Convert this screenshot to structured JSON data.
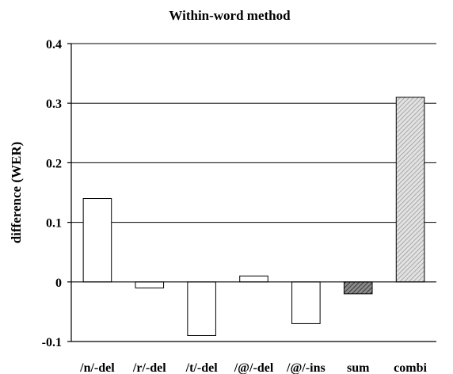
{
  "chart_data": {
    "type": "bar",
    "title": "Within-word method",
    "xlabel": "",
    "ylabel": "difference (WER)",
    "ylim": [
      -0.1,
      0.4
    ],
    "yticks": [
      0.4,
      0.3,
      0.2,
      0.1,
      0,
      -0.1
    ],
    "ytick_labels": [
      "0.4",
      "0.3",
      "0.2",
      "0.1",
      "0",
      "-0.1"
    ],
    "grid": "horizontal",
    "categories": [
      "/n/-del",
      "/r/-del",
      "/t/-del",
      "/@/-del",
      "/@/-ins",
      "sum",
      "combi"
    ],
    "values": [
      0.14,
      -0.01,
      -0.09,
      0.01,
      -0.07,
      -0.02,
      0.31
    ],
    "bar_fills": [
      "white",
      "white",
      "white",
      "white",
      "white",
      "dark-hatched",
      "light-hatched"
    ],
    "colors": {
      "axis": "#000000",
      "grid": "#000000",
      "bar_edge": "#000000",
      "bar_white": "#ffffff",
      "sum_fill": "#6e6e6e",
      "combi_fill": "#c8c8c8"
    }
  }
}
